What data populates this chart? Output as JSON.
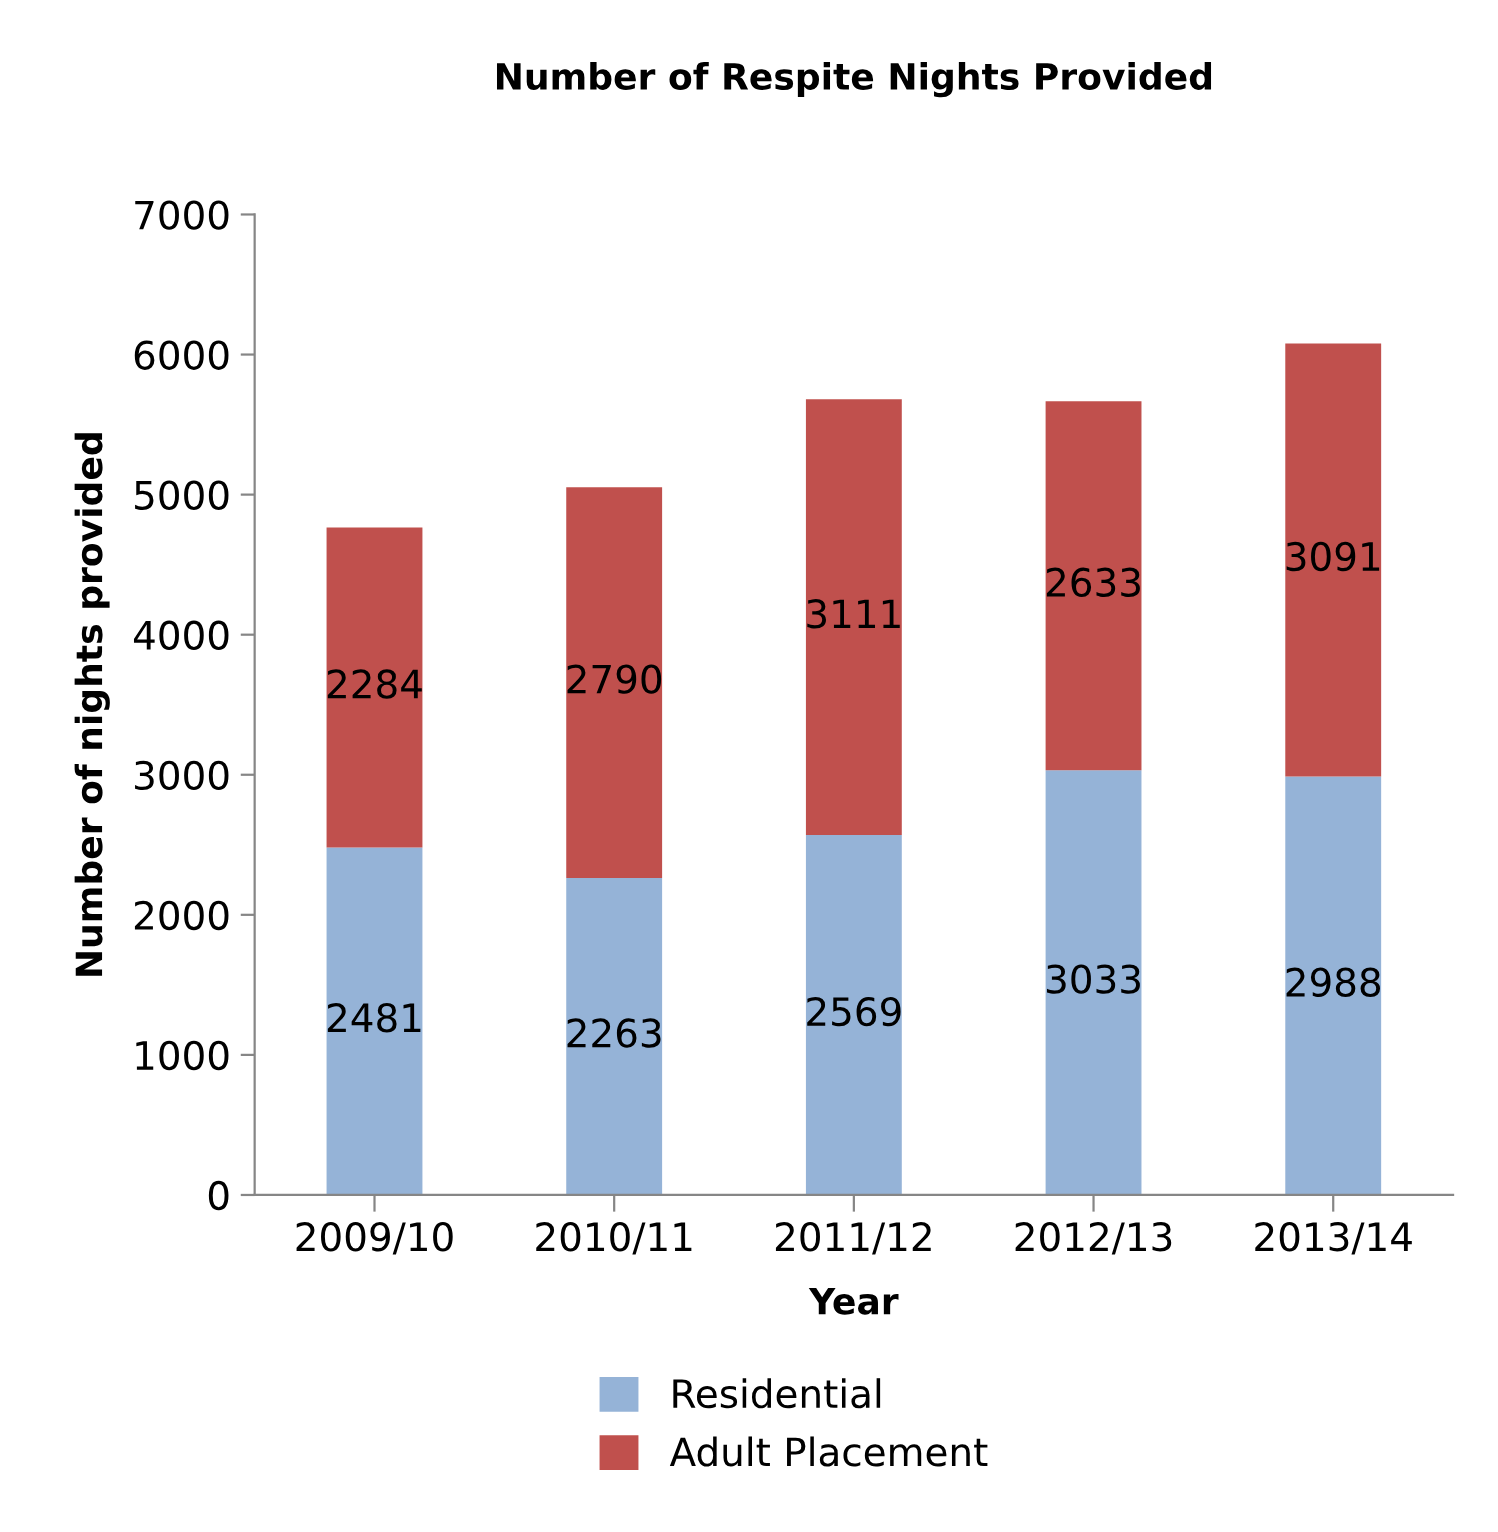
{
  "chart_data": {
    "type": "bar",
    "stacked": true,
    "title": "Number of Respite Nights Provided",
    "xlabel": "Year",
    "ylabel": "Number of nights provided",
    "categories": [
      "2009/10",
      "2010/11",
      "2011/12",
      "2012/13",
      "2013/14"
    ],
    "series": [
      {
        "name": "Residential",
        "color": "#95b3d7",
        "values": [
          2481,
          2263,
          2569,
          3033,
          2988
        ]
      },
      {
        "name": "Adult Placement",
        "color": "#c0504d",
        "values": [
          2284,
          2790,
          3111,
          2633,
          3091
        ]
      }
    ],
    "ylim": [
      0,
      7000
    ],
    "yticks": [
      0,
      1000,
      2000,
      3000,
      4000,
      5000,
      6000,
      7000
    ],
    "grid": false,
    "legend": "bottom",
    "data_labels": true
  }
}
